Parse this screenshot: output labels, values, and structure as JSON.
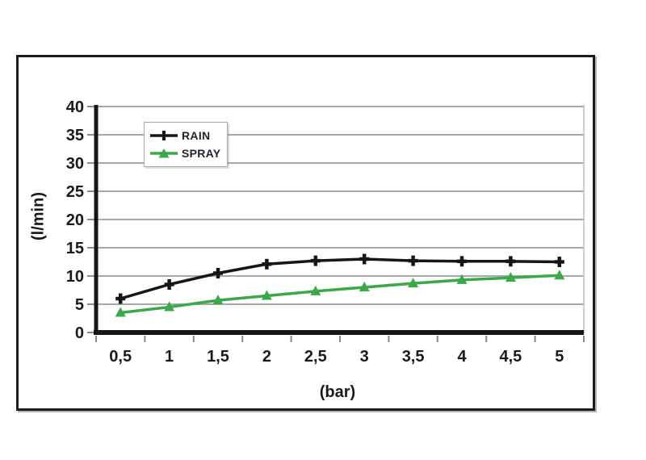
{
  "chart_data": {
    "type": "line",
    "x": [
      0.5,
      1,
      1.5,
      2,
      2.5,
      3,
      3.5,
      4,
      4.5,
      5
    ],
    "x_tick_labels": [
      "0,5",
      "1",
      "1,5",
      "2",
      "2,5",
      "3",
      "3,5",
      "4",
      "4,5",
      "5"
    ],
    "y_tick_labels": [
      "0",
      "5",
      "10",
      "15",
      "20",
      "25",
      "30",
      "35",
      "40"
    ],
    "series": [
      {
        "name": "RAIN",
        "color": "#161616",
        "marker": "plus",
        "values": [
          6.0,
          8.5,
          10.5,
          12.1,
          12.7,
          13.0,
          12.7,
          12.6,
          12.6,
          12.5
        ]
      },
      {
        "name": "SPRAY",
        "color": "#3CA84B",
        "marker": "triangle",
        "values": [
          3.5,
          4.5,
          5.7,
          6.5,
          7.3,
          8.0,
          8.7,
          9.3,
          9.7,
          10.1
        ]
      }
    ],
    "xlabel": "(bar)",
    "ylabel": "(l/min)",
    "ylim": [
      0,
      40
    ],
    "ytick_step": 5,
    "grid": "horizontal",
    "legend_position": "top-left"
  }
}
